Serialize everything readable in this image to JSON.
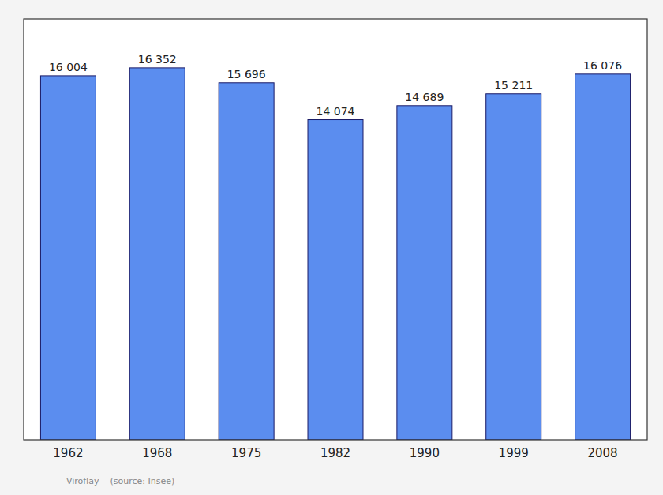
{
  "chart_data": {
    "type": "bar",
    "categories": [
      "1962",
      "1968",
      "1975",
      "1982",
      "1990",
      "1999",
      "2008"
    ],
    "values": [
      16004,
      16352,
      15696,
      14074,
      14689,
      15211,
      16076
    ],
    "value_labels": [
      "16 004",
      "16 352",
      "15 696",
      "14 074",
      "14 689",
      "15 211",
      "16 076"
    ],
    "color": "#5B8DEF",
    "ylim": [
      0,
      18500
    ],
    "data_labels": true,
    "tick_labels": "x",
    "annotations": [
      "Viroflay    (source: Insee)"
    ]
  }
}
